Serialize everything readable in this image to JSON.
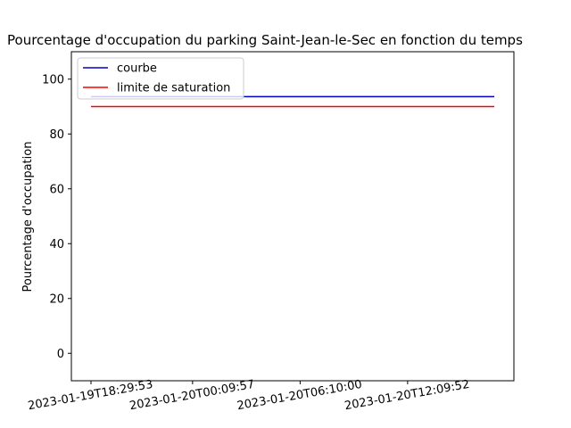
{
  "chart_data": {
    "type": "line",
    "title": "Pourcentage d'occupation du parking Saint-Jean-le-Sec en fonction du temps",
    "xlabel": "",
    "ylabel": "Pourcentage d'occupation",
    "ylim": [
      -10,
      110
    ],
    "yticks": [
      0,
      20,
      40,
      60,
      80,
      100
    ],
    "x_start": "2023-01-19T18:29:53",
    "x_end": "2023-01-20T17:00:00",
    "xticks": [
      "2023-01-19T18:29:53",
      "2023-01-20T00:09:57",
      "2023-01-20T06:10:00",
      "2023-01-20T12:09:52"
    ],
    "grid": false,
    "legend_position": "top-left",
    "series": [
      {
        "name": "courbe",
        "color": "#0000cc",
        "x": [
          "2023-01-19T18:29:53",
          "2023-01-20T17:00:00"
        ],
        "y": [
          93.6,
          93.6
        ]
      },
      {
        "name": "limite de saturation",
        "color": "#ff0000",
        "x": [
          "2023-01-19T18:29:53",
          "2023-01-20T17:00:00"
        ],
        "y": [
          90,
          90
        ]
      }
    ]
  }
}
